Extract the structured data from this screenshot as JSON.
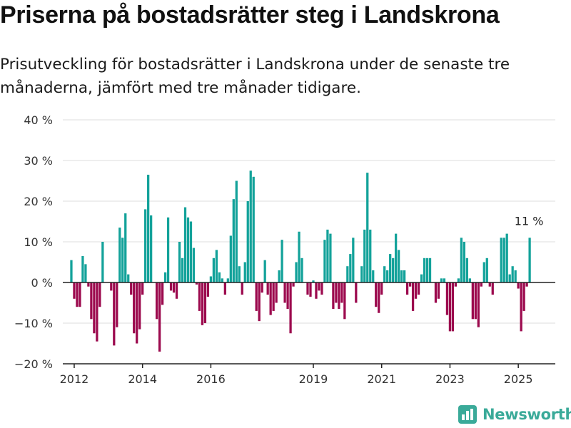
{
  "title": "Priserna på bostadsrätter steg i Landskrona",
  "subtitle": "Prisutveckling för bostadsrätter i Landskrona under de senaste tre månaderna, jämfört med tre månader tidigare.",
  "logo_text": "Newsworthy",
  "colors": {
    "positive": "#13a29a",
    "negative": "#9c0a4e",
    "axis": "#222222",
    "grid": "#dddddd",
    "logo": "#3aaa99"
  },
  "chart_data": {
    "type": "bar",
    "y_tick_labels": [
      "40 %",
      "30 %",
      "20 %",
      "10 %",
      "0 %",
      "−10 %",
      "−20 %"
    ],
    "y_ticks": [
      40,
      30,
      20,
      10,
      0,
      -10,
      -20
    ],
    "ylim": [
      -20,
      40
    ],
    "x_tick_labels": [
      "2012",
      "2014",
      "2016",
      "2019",
      "2021",
      "2023",
      "2025"
    ],
    "x_tick_dates": [
      "2012-01",
      "2014-01",
      "2016-01",
      "2019-01",
      "2021-01",
      "2023-01",
      "2025-01"
    ],
    "xlim": [
      "2011-09",
      "2026-02"
    ],
    "grid": true,
    "annotation": {
      "label": "11 %",
      "date": "2025-05",
      "value": 11
    },
    "series": [
      {
        "x": [
          "2011-12",
          "2012-01",
          "2012-02",
          "2012-03",
          "2012-04",
          "2012-05",
          "2012-06",
          "2012-07",
          "2012-08",
          "2012-09",
          "2012-10",
          "2012-11",
          "2012-12",
          "2013-01",
          "2013-02",
          "2013-03",
          "2013-04",
          "2013-05",
          "2013-06",
          "2013-07",
          "2013-08",
          "2013-09",
          "2013-10",
          "2013-11",
          "2013-12",
          "2014-01",
          "2014-02",
          "2014-03",
          "2014-04",
          "2014-05",
          "2014-06",
          "2014-07",
          "2014-08",
          "2014-09",
          "2014-10",
          "2014-11",
          "2014-12",
          "2015-01",
          "2015-02",
          "2015-03",
          "2015-04",
          "2015-05",
          "2015-06",
          "2015-07",
          "2015-08",
          "2015-09",
          "2015-10",
          "2015-11",
          "2015-12",
          "2016-01",
          "2016-02",
          "2016-03",
          "2016-04",
          "2016-05",
          "2016-06",
          "2016-07",
          "2016-08",
          "2016-09",
          "2016-10",
          "2016-11",
          "2016-12",
          "2017-01",
          "2017-02",
          "2017-03",
          "2017-04",
          "2017-05",
          "2017-06",
          "2017-07",
          "2017-08",
          "2017-09",
          "2017-10",
          "2017-11",
          "2017-12",
          "2018-01",
          "2018-02",
          "2018-03",
          "2018-04",
          "2018-05",
          "2018-06",
          "2018-07",
          "2018-08",
          "2018-09",
          "2018-10",
          "2018-11",
          "2018-12",
          "2019-01",
          "2019-02",
          "2019-03",
          "2019-04",
          "2019-05",
          "2019-06",
          "2019-07",
          "2019-08",
          "2019-09",
          "2019-10",
          "2019-11",
          "2019-12",
          "2020-01",
          "2020-02",
          "2020-03",
          "2020-04",
          "2020-05",
          "2020-06",
          "2020-07",
          "2020-08",
          "2020-09",
          "2020-10",
          "2020-11",
          "2020-12",
          "2021-01",
          "2021-02",
          "2021-03",
          "2021-04",
          "2021-05",
          "2021-06",
          "2021-07",
          "2021-08",
          "2021-09",
          "2021-10",
          "2021-11",
          "2021-12",
          "2022-01",
          "2022-02",
          "2022-03",
          "2022-04",
          "2022-05",
          "2022-06",
          "2022-07",
          "2022-08",
          "2022-09",
          "2022-10",
          "2022-11",
          "2022-12",
          "2023-01",
          "2023-02",
          "2023-03",
          "2023-04",
          "2023-05",
          "2023-06",
          "2023-07",
          "2023-08",
          "2023-09",
          "2023-10",
          "2023-11",
          "2023-12",
          "2024-01",
          "2024-02",
          "2024-03",
          "2024-04",
          "2024-05",
          "2024-06",
          "2024-07",
          "2024-08",
          "2024-09",
          "2024-10",
          "2024-11",
          "2024-12",
          "2025-01",
          "2025-02",
          "2025-03",
          "2025-04",
          "2025-05"
        ],
        "values": [
          5.5,
          -4,
          -6,
          -6,
          6.5,
          4.5,
          -1,
          -9,
          -12.5,
          -14.5,
          -6,
          10,
          0,
          0,
          -2,
          -15.5,
          -11,
          13.5,
          11,
          17,
          2,
          -3,
          -12.5,
          -15,
          -11.5,
          -3,
          18,
          26.5,
          16.5,
          0,
          -9,
          -17,
          -5.5,
          2.5,
          16,
          -2,
          -2.5,
          -4,
          10,
          6,
          18.5,
          16,
          15,
          8.5,
          -0.5,
          -7,
          -10.5,
          -10,
          -3.5,
          1.5,
          6,
          8,
          2.5,
          1,
          -3,
          1,
          11.5,
          20.5,
          25,
          4,
          -3,
          5,
          20,
          27.5,
          26,
          -7,
          -9.5,
          -2.5,
          5.5,
          -3,
          -8,
          -7,
          -5,
          3,
          10.5,
          -5,
          -6.5,
          -12.5,
          -1,
          5,
          12.5,
          6,
          0,
          -3,
          -3.5,
          0.5,
          -4,
          -2,
          -3,
          10.5,
          13,
          12,
          -6.5,
          -5,
          -6.5,
          -5,
          -9,
          4,
          7,
          11,
          -5,
          0,
          4,
          13,
          27,
          13,
          3,
          -6,
          -7.5,
          -3,
          4,
          3,
          7,
          6,
          12,
          8,
          3,
          3,
          -3,
          -1,
          -7,
          -4,
          -3,
          2,
          6,
          6,
          6,
          0,
          -5,
          -4,
          1,
          1,
          -8,
          -12,
          -12,
          -1,
          1,
          11,
          10,
          6,
          1,
          -9,
          -9,
          -11,
          -1,
          5,
          6,
          -1,
          -3,
          0,
          0,
          11,
          11,
          12,
          2,
          4,
          3,
          -1.5,
          -12,
          -7,
          -1,
          11
        ]
      }
    ]
  }
}
